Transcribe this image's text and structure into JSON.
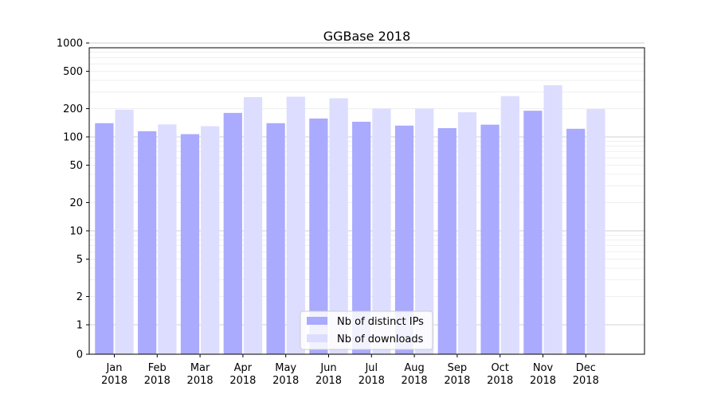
{
  "chart_data": {
    "type": "bar",
    "title": "GGBase 2018",
    "xlabel": "",
    "ylabel": "",
    "y_scale": "symlog",
    "ylim": [
      0,
      1300
    ],
    "categories": [
      {
        "month": "Jan",
        "year": "2018"
      },
      {
        "month": "Feb",
        "year": "2018"
      },
      {
        "month": "Mar",
        "year": "2018"
      },
      {
        "month": "Apr",
        "year": "2018"
      },
      {
        "month": "May",
        "year": "2018"
      },
      {
        "month": "Jun",
        "year": "2018"
      },
      {
        "month": "Jul",
        "year": "2018"
      },
      {
        "month": "Aug",
        "year": "2018"
      },
      {
        "month": "Sep",
        "year": "2018"
      },
      {
        "month": "Oct",
        "year": "2018"
      },
      {
        "month": "Nov",
        "year": "2018"
      },
      {
        "month": "Dec",
        "year": "2018"
      }
    ],
    "series": [
      {
        "name": "Nb of distinct IPs",
        "color": "#aaaaff",
        "values": [
          140,
          115,
          107,
          180,
          140,
          157,
          145,
          132,
          124,
          135,
          190,
          122
        ]
      },
      {
        "name": "Nb of downloads",
        "color": "#ddddff",
        "values": [
          195,
          136,
          130,
          265,
          268,
          258,
          200,
          200,
          183,
          272,
          355,
          198
        ]
      }
    ],
    "y_ticks": [
      {
        "value": 0,
        "label": "0"
      },
      {
        "value": 1,
        "label": "1"
      },
      {
        "value": 2,
        "label": "2"
      },
      {
        "value": 5,
        "label": "5"
      },
      {
        "value": 10,
        "label": "10"
      },
      {
        "value": 20,
        "label": "20"
      },
      {
        "value": 50,
        "label": "50"
      },
      {
        "value": 100,
        "label": "100"
      },
      {
        "value": 200,
        "label": "200"
      },
      {
        "value": 500,
        "label": "500"
      },
      {
        "value": 1000,
        "label": "1000"
      }
    ],
    "grid": true,
    "legend_position": "lower center"
  }
}
